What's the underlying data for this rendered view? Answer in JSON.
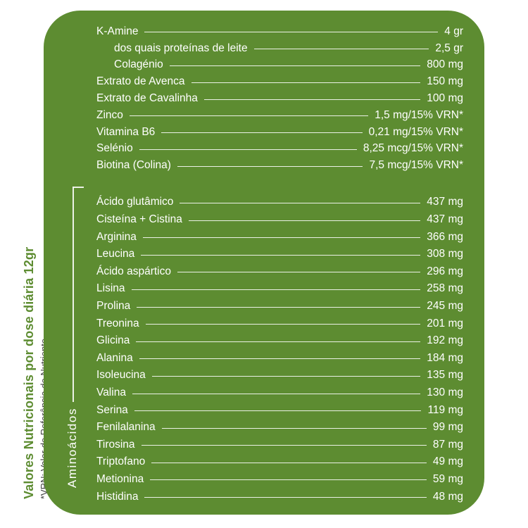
{
  "colors": {
    "panel_green": "#5d8c31",
    "title_green": "#5d8c31",
    "footnote_gray": "#3d3d3d",
    "row_text": "#ffffff"
  },
  "left_column": {
    "title": "Valores Nutricionais por dose diária 12gr",
    "footnote": "*VRN: Valor de Referência do Nutriente"
  },
  "panel": {
    "top_section": {
      "rows": [
        {
          "label": "K-Amine",
          "value": "4 gr",
          "indent": false
        },
        {
          "label": "dos quais proteínas de leite",
          "value": "2,5 gr",
          "indent": true
        },
        {
          "label": "Colagénio",
          "value": "800 mg",
          "indent": true
        },
        {
          "label": "Extrato de Avenca",
          "value": "150 mg",
          "indent": false
        },
        {
          "label": "Extrato de Cavalinha",
          "value": "100 mg",
          "indent": false
        },
        {
          "label": "Zinco",
          "value": "1,5 mg/15% VRN*",
          "indent": false
        },
        {
          "label": "Vitamina B6",
          "value": "0,21 mg/15% VRN*",
          "indent": false
        },
        {
          "label": "Selénio",
          "value": "8,25 mcg/15% VRN*",
          "indent": false
        },
        {
          "label": "Biotina (Colina)",
          "value": "7,5 mcg/15% VRN*",
          "indent": false
        }
      ]
    },
    "amino_section": {
      "group_label": "Aminoácidos",
      "rows": [
        {
          "label": "Ácido glutâmico",
          "value": "437 mg",
          "indent": false
        },
        {
          "label": "Cisteína + Cistina",
          "value": "437 mg",
          "indent": false
        },
        {
          "label": "Arginina",
          "value": "366 mg",
          "indent": false
        },
        {
          "label": "Leucina",
          "value": "308 mg",
          "indent": false
        },
        {
          "label": "Ácido aspártico",
          "value": "296 mg",
          "indent": false
        },
        {
          "label": "Lisina",
          "value": "258 mg",
          "indent": false
        },
        {
          "label": "Prolina",
          "value": "245 mg",
          "indent": false
        },
        {
          "label": "Treonina",
          "value": "201 mg",
          "indent": false
        },
        {
          "label": "Glicina",
          "value": "192 mg",
          "indent": false
        },
        {
          "label": "Alanina",
          "value": "184 mg",
          "indent": false
        },
        {
          "label": "Isoleucina",
          "value": "135 mg",
          "indent": false
        },
        {
          "label": "Valina",
          "value": "130 mg",
          "indent": false
        },
        {
          "label": "Serina",
          "value": "119 mg",
          "indent": false
        },
        {
          "label": "Fenilalanina",
          "value": "99 mg",
          "indent": false
        },
        {
          "label": "Tirosina",
          "value": "87 mg",
          "indent": false
        },
        {
          "label": "Triptofano",
          "value": "49 mg",
          "indent": false
        },
        {
          "label": "Metionina",
          "value": "59 mg",
          "indent": false
        },
        {
          "label": "Histidina",
          "value": "48 mg",
          "indent": false
        }
      ]
    }
  }
}
